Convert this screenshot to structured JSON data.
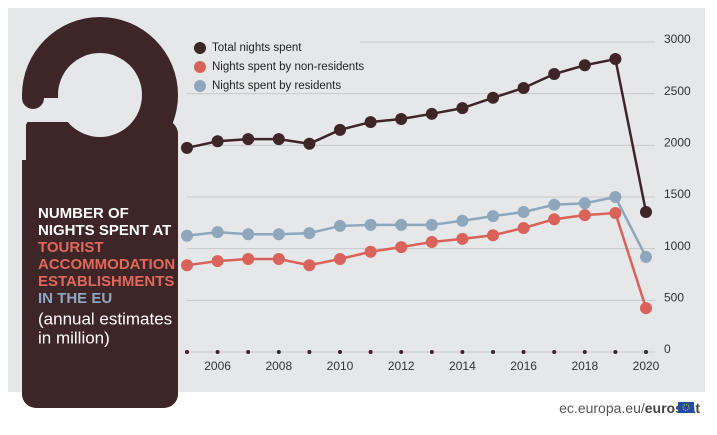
{
  "chart_data": {
    "type": "line",
    "title": [
      {
        "lines": [
          "NUMBER OF",
          "NIGHTS SPENT AT"
        ],
        "color": "#ffffff"
      },
      {
        "lines": [
          "TOURIST",
          "ACCOMMODATION",
          "ESTABLISHMENTS"
        ],
        "color": "#e0695b"
      },
      {
        "lines": [
          "IN THE EU"
        ],
        "color": "#8ea9c1"
      },
      {
        "lines": [
          "(annual estimates",
          "in million)"
        ],
        "color": "#ffffff"
      }
    ],
    "x": [
      2005,
      2006,
      2007,
      2008,
      2009,
      2010,
      2011,
      2012,
      2013,
      2014,
      2015,
      2016,
      2017,
      2018,
      2019,
      2020
    ],
    "xlim": [
      2005,
      2020
    ],
    "xticks": [
      2006,
      2008,
      2010,
      2012,
      2014,
      2016,
      2018,
      2020
    ],
    "ylim": [
      0,
      3000
    ],
    "yticks": [
      0,
      500,
      1000,
      1500,
      2000,
      2500,
      3000
    ],
    "grid": true,
    "series": [
      {
        "name": "Total nights spent",
        "color": "#3d2528",
        "values": [
          1975,
          2040,
          2060,
          2060,
          2015,
          2150,
          2225,
          2255,
          2305,
          2360,
          2460,
          2555,
          2690,
          2775,
          2835,
          1355
        ]
      },
      {
        "name": "Nights spent by non-residents",
        "color": "#d9625a",
        "values": [
          840,
          880,
          900,
          900,
          840,
          900,
          970,
          1015,
          1065,
          1095,
          1130,
          1200,
          1285,
          1325,
          1345,
          425
        ]
      },
      {
        "name": "Nights spent by residents",
        "color": "#8ea7bd",
        "values": [
          1125,
          1160,
          1140,
          1140,
          1150,
          1220,
          1230,
          1230,
          1230,
          1270,
          1315,
          1355,
          1425,
          1440,
          1500,
          920
        ]
      }
    ],
    "source": "ec.europa.eu/",
    "brand": "eurostat"
  }
}
